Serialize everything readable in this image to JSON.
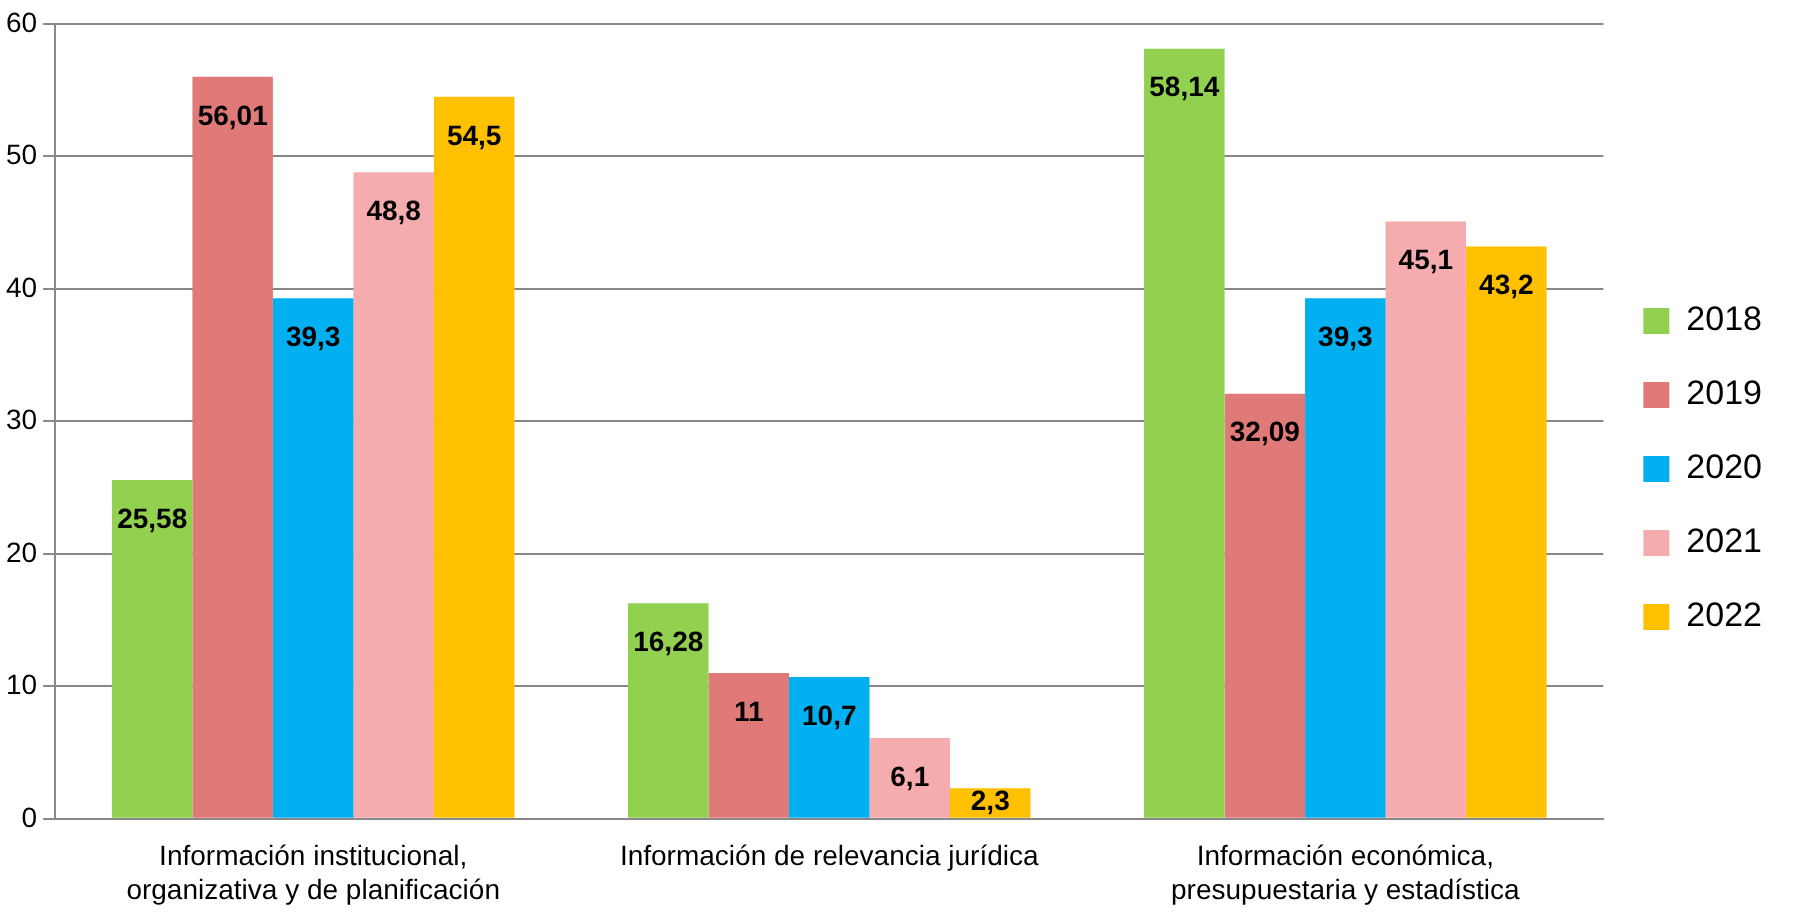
{
  "chart_data": {
    "type": "bar",
    "categories": [
      "Información institucional, organizativa y de planificación",
      "Información de relevancia jurídica",
      "Información económica, presupuestaria y estadística"
    ],
    "series": [
      {
        "name": "2018",
        "color": "#92d050",
        "values": [
          25.58,
          16.28,
          58.14
        ],
        "value_labels": [
          "25,58",
          "16,28",
          "58,14"
        ]
      },
      {
        "name": "2019",
        "color": "#e07a78",
        "values": [
          56.01,
          11,
          32.09
        ],
        "value_labels": [
          "56,01",
          "11",
          "32,09"
        ]
      },
      {
        "name": "2020",
        "color": "#00b0f0",
        "values": [
          39.3,
          10.7,
          39.3
        ],
        "value_labels": [
          "39,3",
          "10,7",
          "39,3"
        ]
      },
      {
        "name": "2021",
        "color": "#f5acae",
        "values": [
          48.8,
          6.1,
          45.1
        ],
        "value_labels": [
          "48,8",
          "6,1",
          "45,1"
        ]
      },
      {
        "name": "2022",
        "color": "#ffc000",
        "values": [
          54.5,
          2.3,
          43.2
        ],
        "value_labels": [
          "54,5",
          "2,3",
          "43,2"
        ]
      }
    ],
    "ylim": [
      0,
      60
    ],
    "yticks": [
      0,
      10,
      20,
      30,
      40,
      50,
      60
    ],
    "grid": "y",
    "legend": "right"
  }
}
